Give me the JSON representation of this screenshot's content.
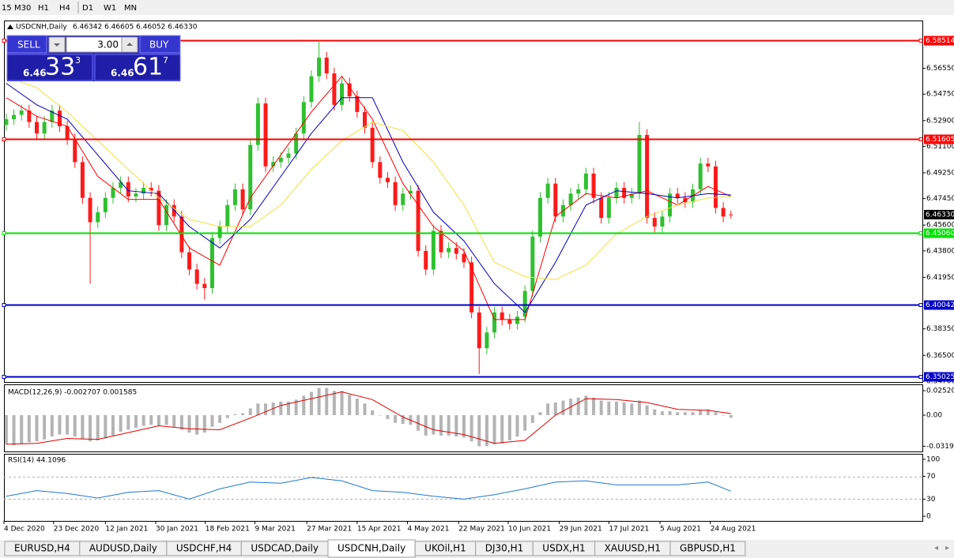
{
  "toolbar": {
    "timeframes": [
      "15",
      "M30",
      "H1",
      "H4",
      "D1",
      "W1",
      "MN"
    ]
  },
  "trade_panel": {
    "sell_label": "SELL",
    "lots": "3.00",
    "buy_label": "BUY",
    "bid": {
      "prefix": "6.46",
      "big": "33",
      "small": "3"
    },
    "ask": {
      "prefix": "6.46",
      "big": "61",
      "small": "7"
    }
  },
  "chart_data": [
    {
      "type": "candlestick",
      "title": "USDCNH,Daily",
      "subtitle": "6.46342 6.46605 6.46052 6.46330",
      "up_color": "#2fc02f",
      "down_color": "#ff1a1a",
      "open": [
        6.526,
        6.53,
        6.533,
        6.536,
        6.528,
        6.52,
        6.528,
        6.536,
        6.525,
        6.516,
        6.5,
        6.475,
        6.458,
        6.465,
        6.475,
        6.482,
        6.486,
        6.476,
        6.478,
        6.482,
        6.48,
        6.456,
        6.47,
        6.462,
        6.437,
        6.425,
        6.415,
        6.412,
        6.447,
        6.455,
        6.47,
        6.481,
        6.467,
        6.512,
        6.541,
        6.497,
        6.5,
        6.503,
        6.506,
        6.52,
        6.542,
        6.56,
        6.573,
        6.562,
        6.54,
        6.555,
        6.546,
        6.535,
        6.524,
        6.5,
        6.489,
        6.486,
        6.47,
        6.478,
        6.48,
        6.438,
        6.425,
        6.452,
        6.437,
        6.44,
        6.436,
        6.43,
        6.395,
        6.37,
        6.381,
        6.395,
        6.39,
        6.387,
        6.392,
        6.41,
        6.448,
        6.475,
        6.485,
        6.462,
        6.47,
        6.478,
        6.481,
        6.492,
        6.475,
        6.461,
        6.475,
        6.482,
        6.475,
        6.478,
        6.519,
        6.461,
        6.455,
        6.462,
        6.478,
        6.475,
        6.472,
        6.481,
        6.499,
        6.497,
        6.468,
        6.4634
      ],
      "high": [
        6.534,
        6.537,
        6.54,
        6.54,
        6.532,
        6.532,
        6.54,
        6.54,
        6.529,
        6.52,
        6.504,
        6.479,
        6.469,
        6.479,
        6.486,
        6.49,
        6.49,
        6.482,
        6.486,
        6.486,
        6.484,
        6.474,
        6.474,
        6.466,
        6.441,
        6.429,
        6.419,
        6.451,
        6.459,
        6.474,
        6.485,
        6.485,
        6.516,
        6.545,
        6.545,
        6.504,
        6.507,
        6.51,
        6.524,
        6.546,
        6.564,
        6.584,
        6.577,
        6.566,
        6.559,
        6.559,
        6.55,
        6.539,
        6.528,
        6.504,
        6.493,
        6.49,
        6.482,
        6.484,
        6.484,
        6.442,
        6.456,
        6.456,
        6.444,
        6.444,
        6.44,
        6.434,
        6.399,
        6.385,
        6.399,
        6.399,
        6.394,
        6.396,
        6.414,
        6.452,
        6.479,
        6.489,
        6.489,
        6.474,
        6.482,
        6.485,
        6.496,
        6.496,
        6.479,
        6.479,
        6.486,
        6.486,
        6.482,
        6.528,
        6.523,
        6.465,
        6.466,
        6.482,
        6.482,
        6.479,
        6.485,
        6.503,
        6.503,
        6.501,
        6.472,
        6.4661
      ],
      "low": [
        6.522,
        6.526,
        6.529,
        6.524,
        6.516,
        6.516,
        6.524,
        6.521,
        6.512,
        6.496,
        6.471,
        6.415,
        6.454,
        6.461,
        6.471,
        6.478,
        6.472,
        6.472,
        6.474,
        6.476,
        6.452,
        6.452,
        6.458,
        6.433,
        6.421,
        6.411,
        6.404,
        6.408,
        6.443,
        6.451,
        6.466,
        6.463,
        6.463,
        6.508,
        6.493,
        6.493,
        6.496,
        6.499,
        6.502,
        6.516,
        6.538,
        6.556,
        6.558,
        6.536,
        6.536,
        6.542,
        6.531,
        6.52,
        6.496,
        6.485,
        6.482,
        6.466,
        6.466,
        6.474,
        6.434,
        6.421,
        6.421,
        6.433,
        6.433,
        6.432,
        6.426,
        6.391,
        6.352,
        6.366,
        6.377,
        6.386,
        6.383,
        6.383,
        6.388,
        6.406,
        6.444,
        6.471,
        6.458,
        6.458,
        6.466,
        6.474,
        6.477,
        6.471,
        6.457,
        6.457,
        6.471,
        6.471,
        6.471,
        6.474,
        6.457,
        6.451,
        6.451,
        6.458,
        6.471,
        6.468,
        6.468,
        6.477,
        6.493,
        6.464,
        6.458,
        6.4605
      ],
      "close": [
        6.53,
        6.533,
        6.536,
        6.528,
        6.52,
        6.528,
        6.536,
        6.525,
        6.516,
        6.5,
        6.475,
        6.458,
        6.465,
        6.475,
        6.482,
        6.486,
        6.476,
        6.478,
        6.482,
        6.48,
        6.456,
        6.47,
        6.462,
        6.437,
        6.425,
        6.415,
        6.412,
        6.447,
        6.455,
        6.47,
        6.481,
        6.467,
        6.512,
        6.541,
        6.497,
        6.5,
        6.503,
        6.506,
        6.52,
        6.542,
        6.56,
        6.573,
        6.562,
        6.54,
        6.555,
        6.546,
        6.535,
        6.524,
        6.5,
        6.489,
        6.486,
        6.47,
        6.478,
        6.48,
        6.438,
        6.425,
        6.452,
        6.437,
        6.44,
        6.436,
        6.43,
        6.395,
        6.37,
        6.381,
        6.395,
        6.39,
        6.387,
        6.392,
        6.41,
        6.448,
        6.475,
        6.485,
        6.462,
        6.47,
        6.478,
        6.481,
        6.492,
        6.475,
        6.461,
        6.475,
        6.482,
        6.475,
        6.478,
        6.519,
        6.461,
        6.455,
        6.462,
        6.478,
        6.475,
        6.472,
        6.481,
        6.499,
        6.497,
        6.468,
        6.462,
        6.4633
      ],
      "series": [
        {
          "color": "#ff0000",
          "x": [
            0,
            4,
            8,
            12,
            16,
            20,
            24,
            28,
            32,
            36,
            40,
            44,
            48,
            52,
            56,
            60,
            64,
            68,
            72,
            76,
            80,
            84,
            88,
            92,
            95
          ],
          "values": [
            6.545,
            6.532,
            6.525,
            6.49,
            6.474,
            6.474,
            6.44,
            6.428,
            6.475,
            6.505,
            6.535,
            6.56,
            6.53,
            6.485,
            6.455,
            6.438,
            6.39,
            6.39,
            6.462,
            6.478,
            6.475,
            6.48,
            6.47,
            6.483,
            6.476
          ]
        },
        {
          "color": "#0000c0",
          "x": [
            0,
            4,
            8,
            12,
            16,
            20,
            24,
            28,
            32,
            36,
            40,
            44,
            48,
            52,
            56,
            60,
            64,
            68,
            72,
            76,
            80,
            84,
            88,
            92,
            95
          ],
          "values": [
            6.555,
            6.54,
            6.53,
            6.505,
            6.48,
            6.478,
            6.455,
            6.44,
            6.46,
            6.49,
            6.52,
            6.545,
            6.545,
            6.5,
            6.465,
            6.445,
            6.415,
            6.395,
            6.43,
            6.47,
            6.48,
            6.478,
            6.475,
            6.478,
            6.477
          ]
        },
        {
          "color": "#f0e040",
          "x": [
            0,
            4,
            8,
            12,
            16,
            20,
            24,
            28,
            32,
            36,
            40,
            44,
            48,
            52,
            56,
            60,
            64,
            68,
            72,
            76,
            80,
            84,
            88,
            92,
            95
          ],
          "values": [
            6.56,
            6.552,
            6.535,
            6.515,
            6.495,
            6.475,
            6.46,
            6.455,
            6.455,
            6.47,
            6.495,
            6.515,
            6.528,
            6.522,
            6.5,
            6.47,
            6.43,
            6.42,
            6.418,
            6.428,
            6.45,
            6.462,
            6.47,
            6.475,
            6.476
          ]
        }
      ],
      "levels": [
        {
          "value": 6.58514,
          "color": "#ff0000"
        },
        {
          "value": 6.51605,
          "color": "#ff0000"
        },
        {
          "value": 6.4506,
          "label": "6.45060",
          "color": "#00e000"
        },
        {
          "value": 6.40042,
          "color": "#0000c8"
        },
        {
          "value": 6.35025,
          "color": "#0000c8"
        }
      ],
      "last_price": {
        "value": 6.4633,
        "label": "6.46330"
      },
      "xlim": [
        -0.3,
        120.1
      ],
      "ylim": [
        6.3464,
        6.5989
      ],
      "yticks": [
        {
          "value": 6.5655,
          "label": "6.56550"
        },
        {
          "value": 6.5475,
          "label": "6.54750"
        },
        {
          "value": 6.529,
          "label": "6.52900"
        },
        {
          "value": 6.511,
          "label": "6.51100"
        },
        {
          "value": 6.4925,
          "label": "6.49250"
        },
        {
          "value": 6.4745,
          "label": "6.47450"
        },
        {
          "value": 6.456,
          "label": "6.45600"
        },
        {
          "value": 6.438,
          "label": "6.43800"
        },
        {
          "value": 6.4195,
          "label": "6.41950"
        },
        {
          "value": 6.3835,
          "label": "6.38350"
        },
        {
          "value": 6.365,
          "label": "6.36500"
        },
        {
          "value": 6.347,
          "label": "6.34700"
        }
      ],
      "xticks": [
        {
          "value": -0.3,
          "label": "4 Dec 2020"
        },
        {
          "value": 6.2,
          "label": "23 Dec 2020"
        },
        {
          "value": 13,
          "label": "12 Jan 2021"
        },
        {
          "value": 19.6,
          "label": "30 Jan 2021"
        },
        {
          "value": 26.1,
          "label": "18 Feb 2021"
        },
        {
          "value": 32.6,
          "label": "9 Mar 2021"
        },
        {
          "value": 39.4,
          "label": "27 Mar 2021"
        },
        {
          "value": 46,
          "label": "15 Apr 2021"
        },
        {
          "value": 52.6,
          "label": "4 May 2021"
        },
        {
          "value": 59.3,
          "label": "22 May 2021"
        },
        {
          "value": 65.8,
          "label": "10 Jun 2021"
        },
        {
          "value": 72.5,
          "label": "29 Jun 2021"
        },
        {
          "value": 79,
          "label": "17 Jul 2021"
        },
        {
          "value": 85.7,
          "label": "5 Aug 2021"
        },
        {
          "value": 92.3,
          "label": "24 Aug 2021"
        }
      ]
    },
    {
      "type": "macd",
      "title": "MACD(12,26,9) -0.002707 0.001585",
      "histogram": {
        "color": "#b4b4b4",
        "values": [
          -0.03,
          -0.031,
          -0.03,
          -0.028,
          -0.027,
          -0.025,
          -0.022,
          -0.02,
          -0.02,
          -0.022,
          -0.025,
          -0.027,
          -0.026,
          -0.024,
          -0.021,
          -0.017,
          -0.015,
          -0.013,
          -0.011,
          -0.01,
          -0.011,
          -0.01,
          -0.012,
          -0.015,
          -0.018,
          -0.02,
          -0.018,
          -0.012,
          -0.008,
          -0.003,
          0.001,
          0.002,
          0.007,
          0.012,
          0.012,
          0.013,
          0.014,
          0.014,
          0.016,
          0.02,
          0.024,
          0.028,
          0.028,
          0.025,
          0.025,
          0.021,
          0.017,
          0.012,
          0.005,
          0.0,
          -0.004,
          -0.008,
          -0.009,
          -0.01,
          -0.016,
          -0.021,
          -0.02,
          -0.021,
          -0.021,
          -0.022,
          -0.023,
          -0.027,
          -0.032,
          -0.032,
          -0.03,
          -0.029,
          -0.026,
          -0.022,
          -0.016,
          -0.008,
          0.003,
          0.012,
          0.013,
          0.015,
          0.017,
          0.018,
          0.02,
          0.018,
          0.015,
          0.014,
          0.014,
          0.013,
          0.012,
          0.015,
          0.01,
          0.006,
          0.004,
          0.004,
          0.003,
          0.003,
          0.003,
          0.005,
          0.006,
          0.003,
          0.0,
          -0.0027
        ]
      },
      "signal": {
        "color": "#e00000",
        "x": [
          0,
          4,
          8,
          12,
          16,
          20,
          24,
          28,
          32,
          36,
          40,
          44,
          48,
          52,
          56,
          60,
          64,
          68,
          72,
          76,
          80,
          84,
          88,
          92,
          95
        ],
        "values": [
          -0.03,
          -0.029,
          -0.024,
          -0.025,
          -0.018,
          -0.011,
          -0.014,
          -0.015,
          -0.003,
          0.01,
          0.017,
          0.024,
          0.016,
          -0.002,
          -0.015,
          -0.02,
          -0.029,
          -0.026,
          0.0,
          0.017,
          0.016,
          0.013,
          0.006,
          0.005,
          0.0016
        ]
      },
      "xlim": [
        -0.3,
        120.1
      ],
      "ylim": [
        -0.0374,
        0.0309
      ],
      "yticks": [
        0.025209,
        {
          "value": 0,
          "label": "0.00"
        },
        -0.031995
      ]
    },
    {
      "type": "line",
      "title": "RSI(14) 44.1096",
      "color": "#1e78d2",
      "x": [
        0,
        4,
        8,
        12,
        16,
        20,
        24,
        28,
        32,
        36,
        40,
        44,
        48,
        52,
        56,
        60,
        64,
        68,
        72,
        76,
        80,
        84,
        88,
        92,
        95
      ],
      "values": [
        35,
        45,
        40,
        32,
        42,
        45,
        30,
        48,
        60,
        58,
        68,
        62,
        45,
        42,
        35,
        30,
        38,
        48,
        60,
        62,
        55,
        55,
        55,
        60,
        44.1096
      ],
      "xlim": [
        -0.3,
        120.1
      ],
      "ylim": [
        -8.2,
        108.2
      ],
      "yticks": [
        100,
        70,
        30,
        0
      ],
      "levels": [
        70,
        30
      ]
    }
  ],
  "tabs": {
    "items": [
      "EURUSD,H4",
      "AUDUSD,Daily",
      "USDCHF,H4",
      "USDCAD,Daily",
      "USDCNH,Daily",
      "UKOil,H1",
      "DJ30,H1",
      "USDX,H1",
      "XAUUSD,H1",
      "GBPUSD,H1"
    ],
    "active": 4
  }
}
